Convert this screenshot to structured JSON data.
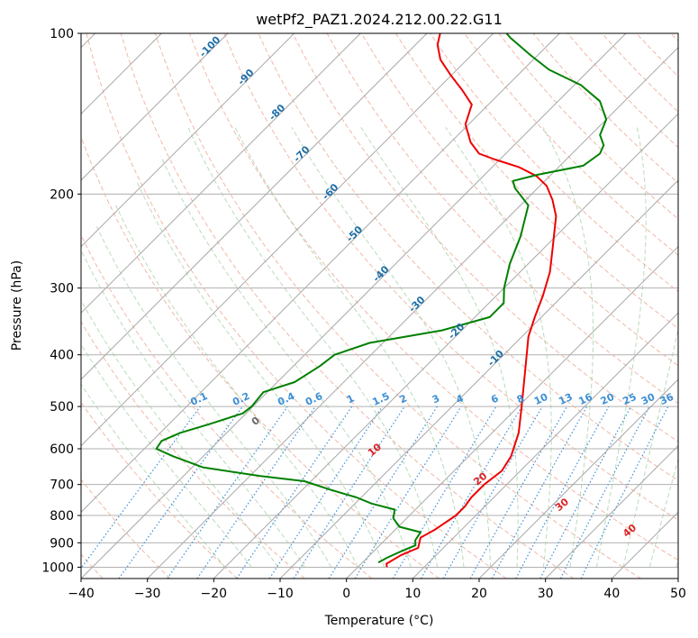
{
  "chart_data": {
    "type": "skew-t log-p",
    "title": "wetPf2_PAZ1.2024.212.00.22.G11",
    "xlabel": "Temperature (°C)",
    "ylabel": "Pressure (hPa)",
    "xlim": [
      -40,
      50
    ],
    "ylim_hpa": [
      1050,
      100
    ],
    "x_ticks": [
      -40,
      -30,
      -20,
      -10,
      0,
      10,
      20,
      30,
      40,
      50
    ],
    "y_ticks": [
      100,
      200,
      300,
      400,
      500,
      600,
      700,
      800,
      900,
      1000
    ],
    "grid": true,
    "series": [
      {
        "role": "temperature",
        "color": "#ee0000",
        "points": [
          [
            4.4,
            1000
          ],
          [
            3.8,
            985
          ],
          [
            4.7,
            950
          ],
          [
            6.2,
            920
          ],
          [
            5.6,
            900
          ],
          [
            5.0,
            880
          ],
          [
            6.0,
            850
          ],
          [
            7.0,
            800
          ],
          [
            7.0,
            770
          ],
          [
            6.6,
            740
          ],
          [
            6.6,
            700
          ],
          [
            7.2,
            660
          ],
          [
            6.4,
            620
          ],
          [
            4.0,
            560
          ],
          [
            0.5,
            500
          ],
          [
            -5.0,
            420
          ],
          [
            -9.0,
            370
          ],
          [
            -11.0,
            340
          ],
          [
            -13.0,
            310
          ],
          [
            -15.5,
            280
          ],
          [
            -19.0,
            250
          ],
          [
            -23.0,
            220
          ],
          [
            -26.0,
            205
          ],
          [
            -29.0,
            193
          ],
          [
            -32.0,
            185
          ],
          [
            -36.0,
            178
          ],
          [
            -41.0,
            172
          ],
          [
            -44.0,
            168
          ],
          [
            -47.0,
            160
          ],
          [
            -50.5,
            148
          ],
          [
            -52.5,
            136
          ],
          [
            -56.0,
            128
          ],
          [
            -60.0,
            120
          ],
          [
            -64.0,
            112
          ],
          [
            -66.7,
            105
          ],
          [
            -68.0,
            100
          ]
        ]
      },
      {
        "role": "dewpoint",
        "color": "#008000",
        "points": [
          [
            2.4,
            980
          ],
          [
            3.0,
            960
          ],
          [
            4.3,
            930
          ],
          [
            5.4,
            910
          ],
          [
            4.6,
            890
          ],
          [
            4.2,
            860
          ],
          [
            0.2,
            840
          ],
          [
            -2.0,
            810
          ],
          [
            -3.1,
            780
          ],
          [
            -7.5,
            760
          ],
          [
            -10.7,
            740
          ],
          [
            -16.0,
            715
          ],
          [
            -21.0,
            690
          ],
          [
            -28.4,
            675
          ],
          [
            -38.4,
            650
          ],
          [
            -44.5,
            620
          ],
          [
            -48.2,
            600
          ],
          [
            -48.6,
            580
          ],
          [
            -47.0,
            560
          ],
          [
            -44.0,
            540
          ],
          [
            -40.5,
            515
          ],
          [
            -40.2,
            500
          ],
          [
            -40.6,
            470
          ],
          [
            -37.4,
            450
          ],
          [
            -36.0,
            420
          ],
          [
            -35.5,
            400
          ],
          [
            -32.0,
            380
          ],
          [
            -23.0,
            360
          ],
          [
            -17.8,
            340
          ],
          [
            -17.8,
            320
          ],
          [
            -20.0,
            300
          ],
          [
            -22.8,
            270
          ],
          [
            -25.3,
            240
          ],
          [
            -28.8,
            210
          ],
          [
            -33.4,
            195
          ],
          [
            -34.8,
            189
          ],
          [
            -32.0,
            184
          ],
          [
            -26.5,
            177
          ],
          [
            -25.8,
            168
          ],
          [
            -26.5,
            162
          ],
          [
            -28.6,
            155
          ],
          [
            -30.0,
            145
          ],
          [
            -33.7,
            134
          ],
          [
            -39.0,
            125
          ],
          [
            -46.1,
            117
          ],
          [
            -51.0,
            110
          ],
          [
            -56.7,
            102
          ],
          [
            -58.0,
            100
          ]
        ]
      }
    ],
    "isotherm_labels": [
      "-100",
      "-90",
      "-80",
      "-70",
      "-60",
      "-50",
      "-40",
      "-30",
      "-20",
      "-10"
    ],
    "mixing_ratio_labels": [
      "0.1",
      "0.2",
      "0.4",
      "0.6",
      "1",
      "1.5",
      "2",
      "3",
      "4",
      "6",
      "8",
      "10",
      "13",
      "16",
      "20",
      "25",
      "30",
      "36"
    ],
    "moist_adiabat_labels": [
      "0",
      "10",
      "20",
      "30",
      "40"
    ]
  }
}
